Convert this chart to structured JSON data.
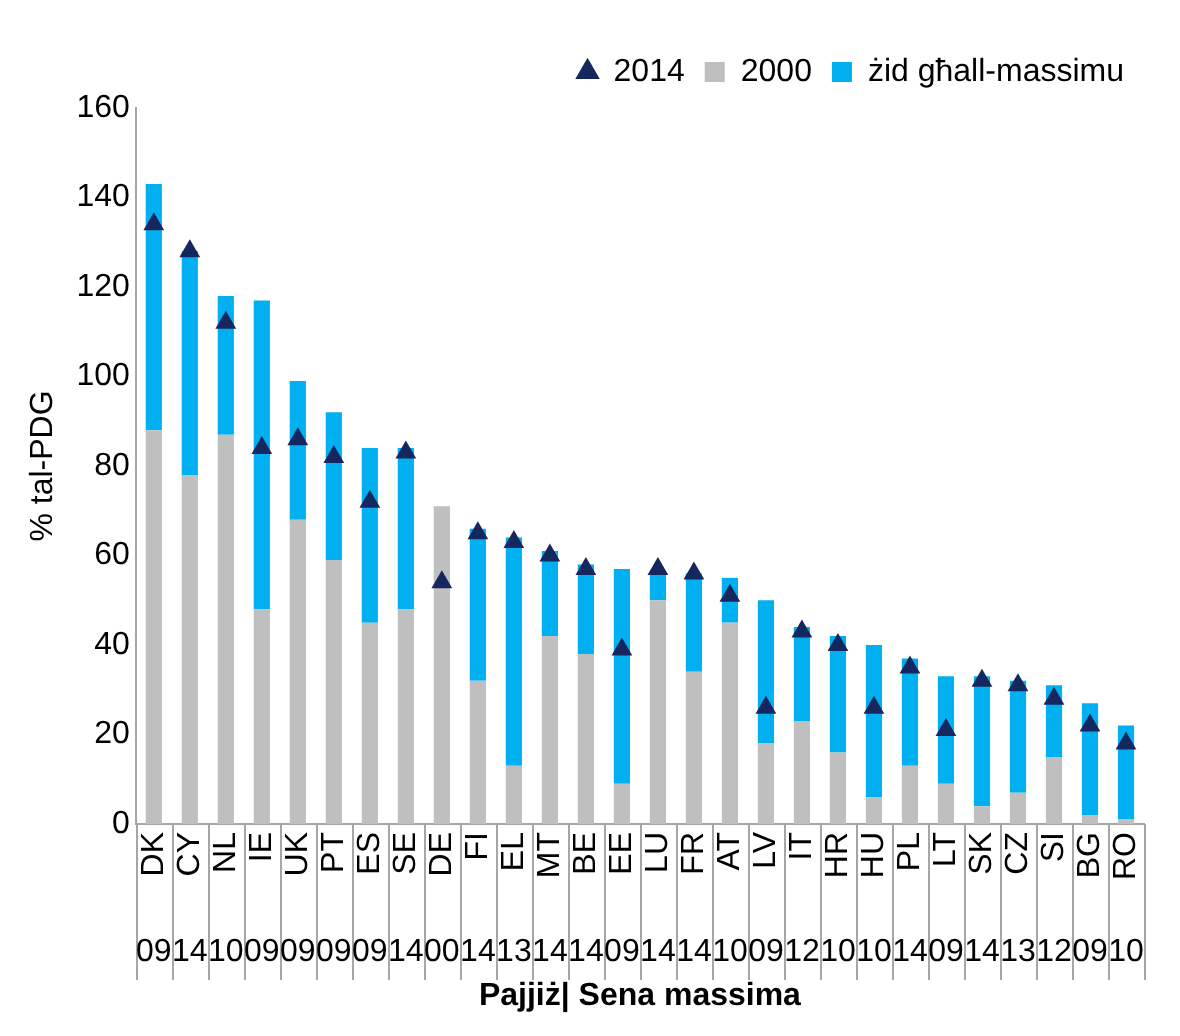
{
  "chart_data": {
    "type": "bar",
    "stacked": true,
    "ylabel": "% tal-PDG",
    "xlabel": "Pajjiż| Sena massima",
    "categories": [
      "DK\n09",
      "CY\n14",
      "NL\n10",
      "IE\n09",
      "UK\n09",
      "PT\n09",
      "ES\n09",
      "SE\n14",
      "DE\n00",
      "FI\n14",
      "EL\n13",
      "MT\n14",
      "BE\n14",
      "EE\n09",
      "LU\n14",
      "FR\n14",
      "AT\n10",
      "LV\n09",
      "IT\n12",
      "HR\n10",
      "HU\n10",
      "PL\n14",
      "LT\n09",
      "SK\n14",
      "CZ\n13",
      "SI\n12",
      "BG\n09",
      "RO\n10"
    ],
    "series": [
      {
        "name": "2000",
        "color": "#bfbfbf",
        "values": [
          88,
          78,
          87,
          48,
          68,
          59,
          45,
          48,
          71,
          32,
          13,
          42,
          38,
          9,
          50,
          34,
          45,
          18,
          23,
          16,
          6,
          13,
          9,
          4,
          7,
          15,
          2,
          1
        ]
      },
      {
        "name": "żid għall-massimu",
        "color": "#00b0f0",
        "values": [
          55,
          50,
          31,
          69,
          31,
          33,
          39,
          36,
          0,
          34,
          51,
          19,
          20,
          48,
          6,
          22,
          10,
          32,
          21,
          26,
          34,
          24,
          24,
          29,
          25,
          16,
          25,
          21
        ]
      },
      {
        "name": "2014",
        "type": "scatter",
        "marker": "triangle",
        "color": "#14285f",
        "values": [
          134,
          128,
          112,
          84,
          86,
          82,
          72,
          83,
          54,
          65,
          63,
          60,
          57,
          39,
          57,
          56,
          51,
          26,
          43,
          40,
          26,
          35,
          21,
          32,
          31,
          28,
          22,
          18
        ]
      }
    ],
    "ylim": [
      0,
      160
    ],
    "yticks": [
      0,
      20,
      40,
      60,
      80,
      100,
      120,
      140,
      160
    ],
    "grid": false,
    "legend": "top right"
  }
}
